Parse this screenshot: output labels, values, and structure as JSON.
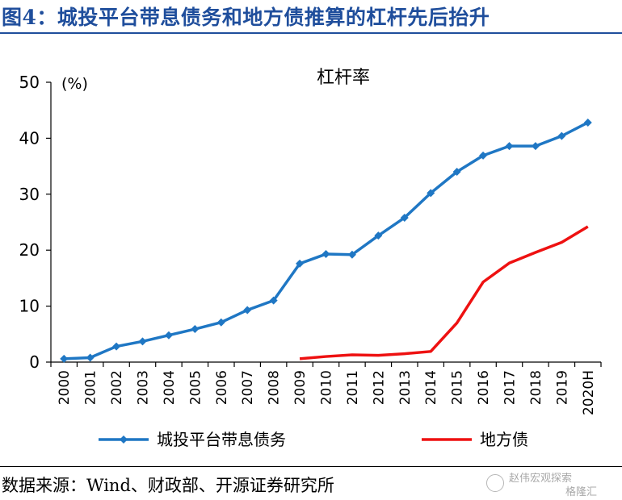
{
  "figure_title": "图4：城投平台带息债务和地方债推算的杠杆先后抬升",
  "source_text": "数据来源：Wind、财政部、开源证券研究所",
  "watermark": {
    "line1": "赵伟宏观探索",
    "line2": "格隆汇"
  },
  "chart_data": {
    "type": "line",
    "title": "杠杆率",
    "ylabel": "(%)",
    "ylim": [
      0,
      50
    ],
    "yticks": [
      "0",
      "10",
      "20",
      "30",
      "40",
      "50"
    ],
    "categories": [
      "2000",
      "2001",
      "2002",
      "2003",
      "2004",
      "2005",
      "2006",
      "2007",
      "2008",
      "2009",
      "2010",
      "2011",
      "2012",
      "2013",
      "2014",
      "2015",
      "2016",
      "2017",
      "2018",
      "2019",
      "2020H"
    ],
    "legend_position": "bottom",
    "grid": false,
    "series": [
      {
        "name": "城投平台带息债务",
        "color": "#1f77c4",
        "marker": "diamond",
        "values": [
          0.6,
          0.8,
          2.8,
          3.7,
          4.8,
          5.9,
          7.1,
          9.3,
          11.0,
          17.6,
          19.3,
          19.2,
          22.6,
          25.8,
          30.2,
          34.0,
          36.9,
          38.6,
          38.6,
          40.4,
          42.8
        ]
      },
      {
        "name": "地方债",
        "color": "#ee1111",
        "marker": "none",
        "values": [
          null,
          null,
          null,
          null,
          null,
          null,
          null,
          null,
          null,
          0.6,
          1.0,
          1.3,
          1.2,
          1.5,
          1.9,
          7.0,
          14.3,
          17.7,
          19.6,
          21.4,
          24.2
        ]
      }
    ]
  }
}
